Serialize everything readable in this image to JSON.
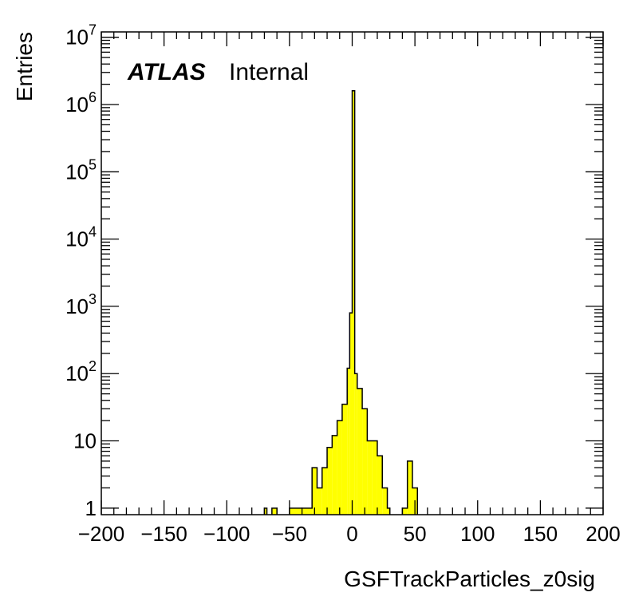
{
  "chart_data": {
    "type": "bar",
    "style": "histogram-step",
    "xlabel": "GSFTrackParticles_z0sig",
    "ylabel": "Entries",
    "xlim": [
      -200,
      200
    ],
    "ylim": [
      0.8,
      12000000
    ],
    "y_scale": "log",
    "grid": false,
    "fill_color": "#ffff00",
    "line_color": "#000000",
    "x_ticks": [
      "−200",
      "−150",
      "−100",
      "−50",
      "0",
      "50",
      "100",
      "150",
      "200"
    ],
    "x_tick_values": [
      -200,
      -150,
      -100,
      -50,
      0,
      50,
      100,
      150,
      200
    ],
    "y_ticks": [
      {
        "value": 1,
        "base": "1",
        "exp": ""
      },
      {
        "value": 10,
        "base": "10",
        "exp": ""
      },
      {
        "value": 100,
        "base": "10",
        "exp": "2"
      },
      {
        "value": 1000,
        "base": "10",
        "exp": "3"
      },
      {
        "value": 10000,
        "base": "10",
        "exp": "4"
      },
      {
        "value": 100000,
        "base": "10",
        "exp": "5"
      },
      {
        "value": 1000000,
        "base": "10",
        "exp": "6"
      },
      {
        "value": 10000000,
        "base": "10",
        "exp": "7"
      }
    ],
    "label_main": "ATLAS",
    "label_sub": "Internal",
    "bins": [
      {
        "x0": -70,
        "x1": -68,
        "y": 1
      },
      {
        "x0": -64,
        "x1": -60,
        "y": 1
      },
      {
        "x0": -50,
        "x1": -32,
        "y": 1
      },
      {
        "x0": -32,
        "x1": -28,
        "y": 4
      },
      {
        "x0": -28,
        "x1": -24,
        "y": 2
      },
      {
        "x0": -24,
        "x1": -20,
        "y": 4
      },
      {
        "x0": -20,
        "x1": -16,
        "y": 8
      },
      {
        "x0": -16,
        "x1": -12,
        "y": 12
      },
      {
        "x0": -12,
        "x1": -8,
        "y": 20
      },
      {
        "x0": -8,
        "x1": -4,
        "y": 35
      },
      {
        "x0": -4,
        "x1": -2,
        "y": 120
      },
      {
        "x0": -2,
        "x1": 0,
        "y": 800
      },
      {
        "x0": 0,
        "x1": 2,
        "y": 1600000
      },
      {
        "x0": 2,
        "x1": 4,
        "y": 100
      },
      {
        "x0": 4,
        "x1": 8,
        "y": 60
      },
      {
        "x0": 8,
        "x1": 12,
        "y": 30
      },
      {
        "x0": 12,
        "x1": 16,
        "y": 10
      },
      {
        "x0": 16,
        "x1": 20,
        "y": 10
      },
      {
        "x0": 20,
        "x1": 24,
        "y": 6
      },
      {
        "x0": 24,
        "x1": 28,
        "y": 2
      },
      {
        "x0": 28,
        "x1": 30,
        "y": 1
      },
      {
        "x0": 40,
        "x1": 44,
        "y": 1
      },
      {
        "x0": 44,
        "x1": 48,
        "y": 5
      },
      {
        "x0": 48,
        "x1": 52,
        "y": 2
      }
    ]
  }
}
